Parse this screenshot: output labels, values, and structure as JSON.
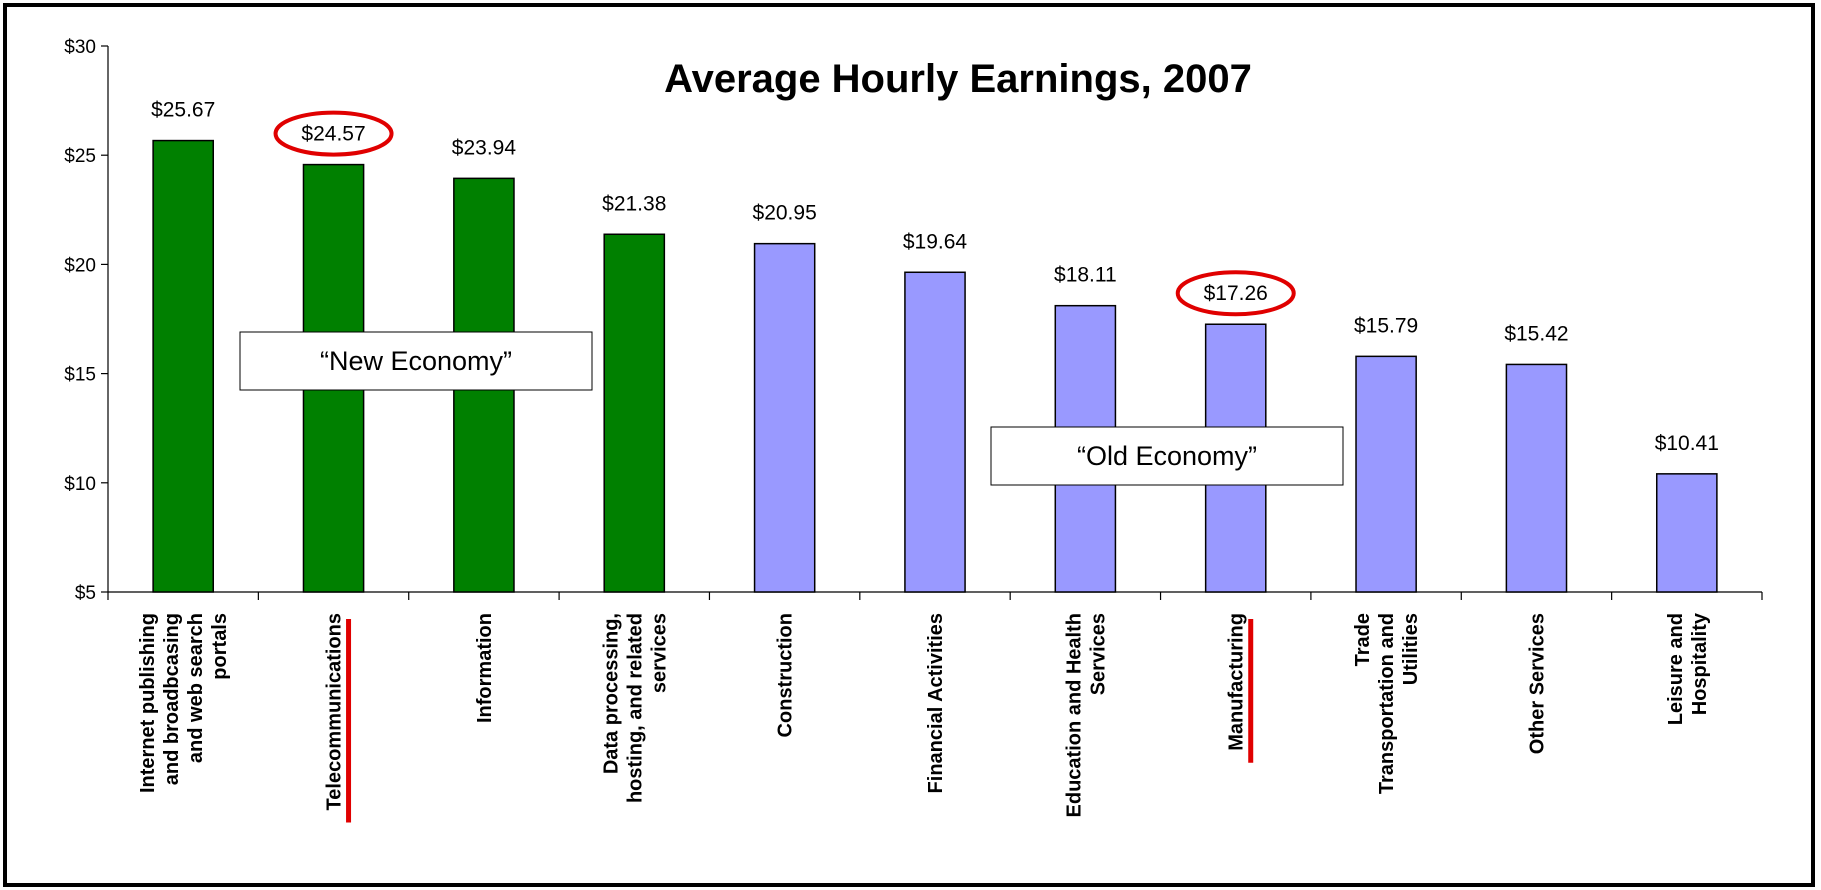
{
  "chart_data": {
    "type": "bar",
    "title": "Average Hourly Earnings, 2007",
    "categories": [
      "Internet publishing\nand broadbcasing\nand web search\nportals",
      "Telecommunications",
      "Information",
      "Data processing,\nhosting, and related\nservices",
      "Construction",
      "Financial Activities",
      "Education and Health\nServices",
      "Manufacturing",
      "Trade\nTransportation and\nUtilities",
      "Other Services",
      "Leisure and\nHospitality"
    ],
    "values": [
      25.67,
      24.57,
      23.94,
      21.38,
      20.95,
      19.64,
      18.11,
      17.26,
      15.79,
      15.42,
      10.41
    ],
    "value_labels": [
      "$25.67",
      "$24.57",
      "$23.94",
      "$21.38",
      "$20.95",
      "$19.64",
      "$18.11",
      "$17.26",
      "$15.79",
      "$15.42",
      "$10.41"
    ],
    "colors": [
      "#008000",
      "#008000",
      "#008000",
      "#008000",
      "#9999ff",
      "#9999ff",
      "#9999ff",
      "#9999ff",
      "#9999ff",
      "#9999ff",
      "#9999ff"
    ],
    "ylim": [
      5,
      30
    ],
    "yticks": [
      {
        "value": 5,
        "label": "$5"
      },
      {
        "value": 10,
        "label": "$10"
      },
      {
        "value": 15,
        "label": "$15"
      },
      {
        "value": 20,
        "label": "$20"
      },
      {
        "value": 25,
        "label": "$25"
      },
      {
        "value": 30,
        "label": "$30"
      }
    ],
    "annotations": [
      "“New Economy”",
      "“Old Economy”"
    ],
    "highlighted": [
      "Telecommunications",
      "Manufacturing"
    ],
    "grid": false
  }
}
